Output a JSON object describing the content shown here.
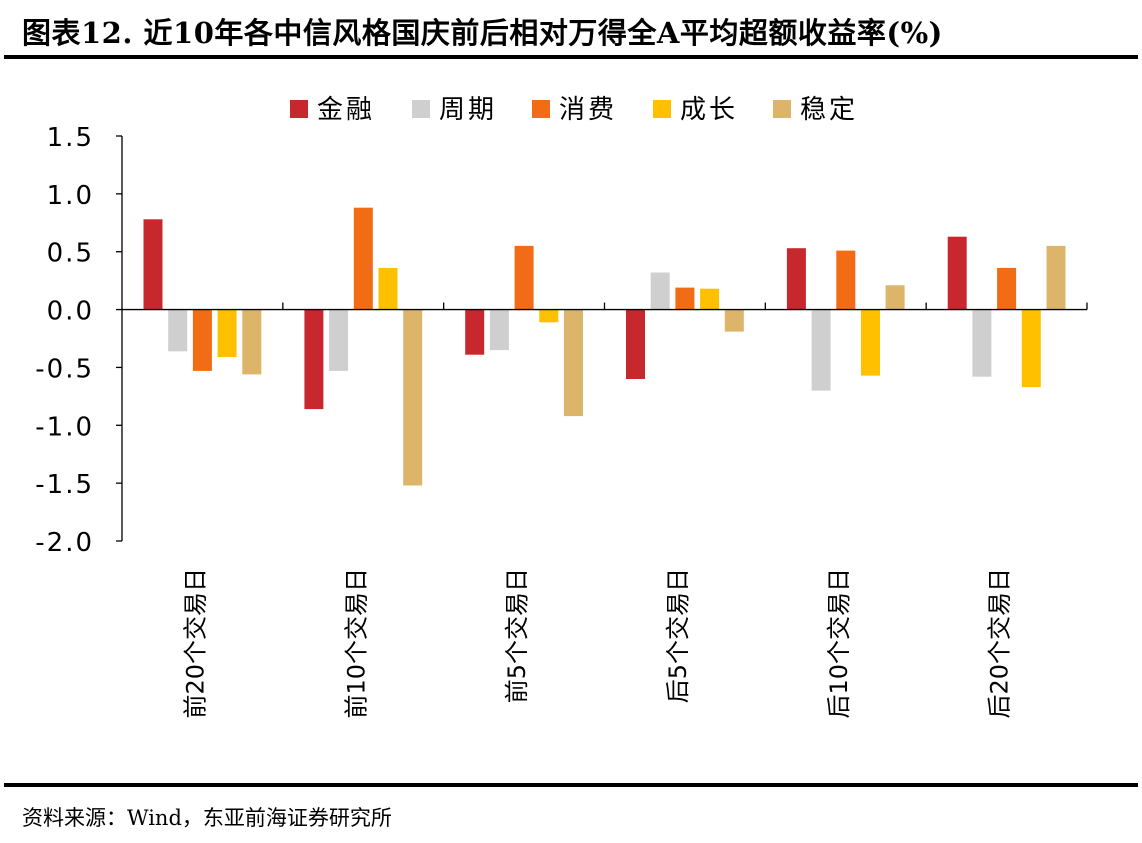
{
  "title": "图表12. 近10年各中信风格国庆前后相对万得全A平均超额收益率(%)",
  "source": "资料来源：Wind，东亚前海证券研究所",
  "chart_data": {
    "type": "bar",
    "title": "",
    "xlabel": "",
    "ylabel": "",
    "ylim": [
      -2.0,
      1.5
    ],
    "yticks": [
      "1.5",
      "1.0",
      "0.5",
      "0.0",
      "-0.5",
      "-1.0",
      "-1.5",
      "-2.0"
    ],
    "ytick_values": [
      1.5,
      1.0,
      0.5,
      0.0,
      -0.5,
      -1.0,
      -1.5,
      -2.0
    ],
    "legend_position": "top",
    "grid": false,
    "categories": [
      "前20个交易日",
      "前10个交易日",
      "前5个交易日",
      "后5个交易日",
      "后10个交易日",
      "后20个交易日"
    ],
    "series": [
      {
        "name": "金融",
        "color": "#c7282e",
        "values": [
          0.78,
          -0.86,
          -0.39,
          -0.6,
          0.53,
          0.63
        ]
      },
      {
        "name": "周期",
        "color": "#cfcfcf",
        "values": [
          -0.36,
          -0.53,
          -0.35,
          0.32,
          -0.7,
          -0.58
        ]
      },
      {
        "name": "消费",
        "color": "#f26b15",
        "values": [
          -0.53,
          0.88,
          0.55,
          0.19,
          0.51,
          0.36
        ]
      },
      {
        "name": "成长",
        "color": "#ffc000",
        "values": [
          -0.41,
          0.36,
          -0.11,
          0.18,
          -0.57,
          -0.67
        ]
      },
      {
        "name": "稳定",
        "color": "#dcb46a",
        "values": [
          -0.56,
          -1.52,
          -0.92,
          -0.19,
          0.21,
          0.55
        ]
      }
    ]
  }
}
